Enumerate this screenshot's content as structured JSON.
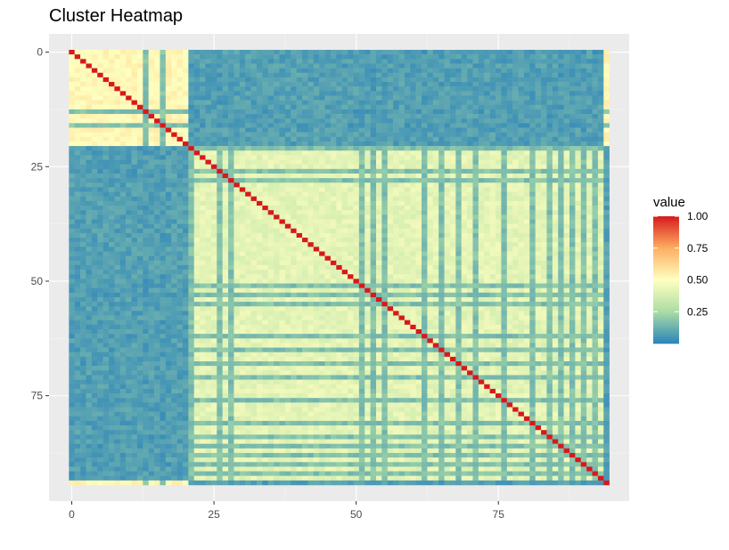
{
  "title": "Cluster Heatmap",
  "chart_data": {
    "type": "heatmap",
    "title": "Cluster Heatmap",
    "xlabel": "",
    "ylabel": "",
    "n": 95,
    "xlim": [
      -4,
      98
    ],
    "ylim": [
      -4,
      98
    ],
    "y_reversed": true,
    "x_ticks": [
      0,
      25,
      50,
      75
    ],
    "x_tick_labels": [
      "0",
      "25",
      "50",
      "75"
    ],
    "y_ticks": [
      0,
      25,
      50,
      75
    ],
    "y_tick_labels": [
      "0",
      "25",
      "50",
      "75"
    ],
    "grid": true,
    "diagonal_value": 1.0,
    "clusters": [
      {
        "start": 0,
        "end": 20,
        "internal": 0.52
      },
      {
        "start": 21,
        "end": 93,
        "internal": 0.42
      }
    ],
    "cross_cluster_value": 0.08,
    "outlier_rows": [
      13,
      16,
      21,
      26,
      28,
      51,
      53,
      55,
      62,
      65,
      68,
      71,
      76,
      81,
      84,
      86,
      88,
      90,
      92
    ],
    "outlier_value": 0.07,
    "value_range": [
      0,
      1
    ],
    "legend": {
      "title": "value",
      "position": "right",
      "breaks": [
        0.25,
        0.5,
        0.75,
        1.0
      ],
      "labels": [
        "0.25",
        "0.50",
        "0.75",
        "1.00"
      ]
    },
    "colorscale": [
      "#2b83ba",
      "#abdda4",
      "#ffffbf",
      "#fdae61",
      "#d7191c"
    ]
  }
}
